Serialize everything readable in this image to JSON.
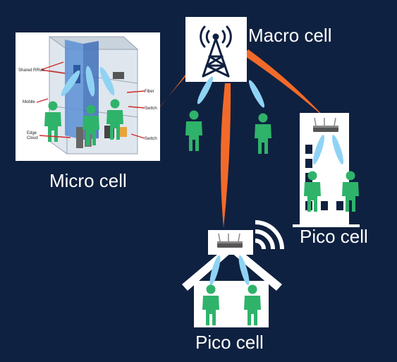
{
  "labels": {
    "macro": "Macro cell",
    "micro": "Micro cell",
    "pico_building": "Pico cell",
    "pico_house": "Pico cell"
  },
  "micro_inset": {
    "shared_rrus": "Shared RRUs",
    "mobile": "Mobile",
    "edge_cloud": "Edge Cloud",
    "fiber": "Fiber",
    "switch_1": "Switch",
    "switch_2": "Switch"
  },
  "icons": {
    "macro": "cell-tower-icon",
    "pico": "access-point-icon",
    "wifi": "wifi-icon",
    "user": "person-icon",
    "house": "house-icon",
    "building": "building-icon"
  },
  "colors": {
    "background": "#0f2140",
    "backhaul_link": "#f26a2a",
    "access_link": "#8fd3f4",
    "user": "#2fb36a",
    "label": "#ffffff"
  }
}
